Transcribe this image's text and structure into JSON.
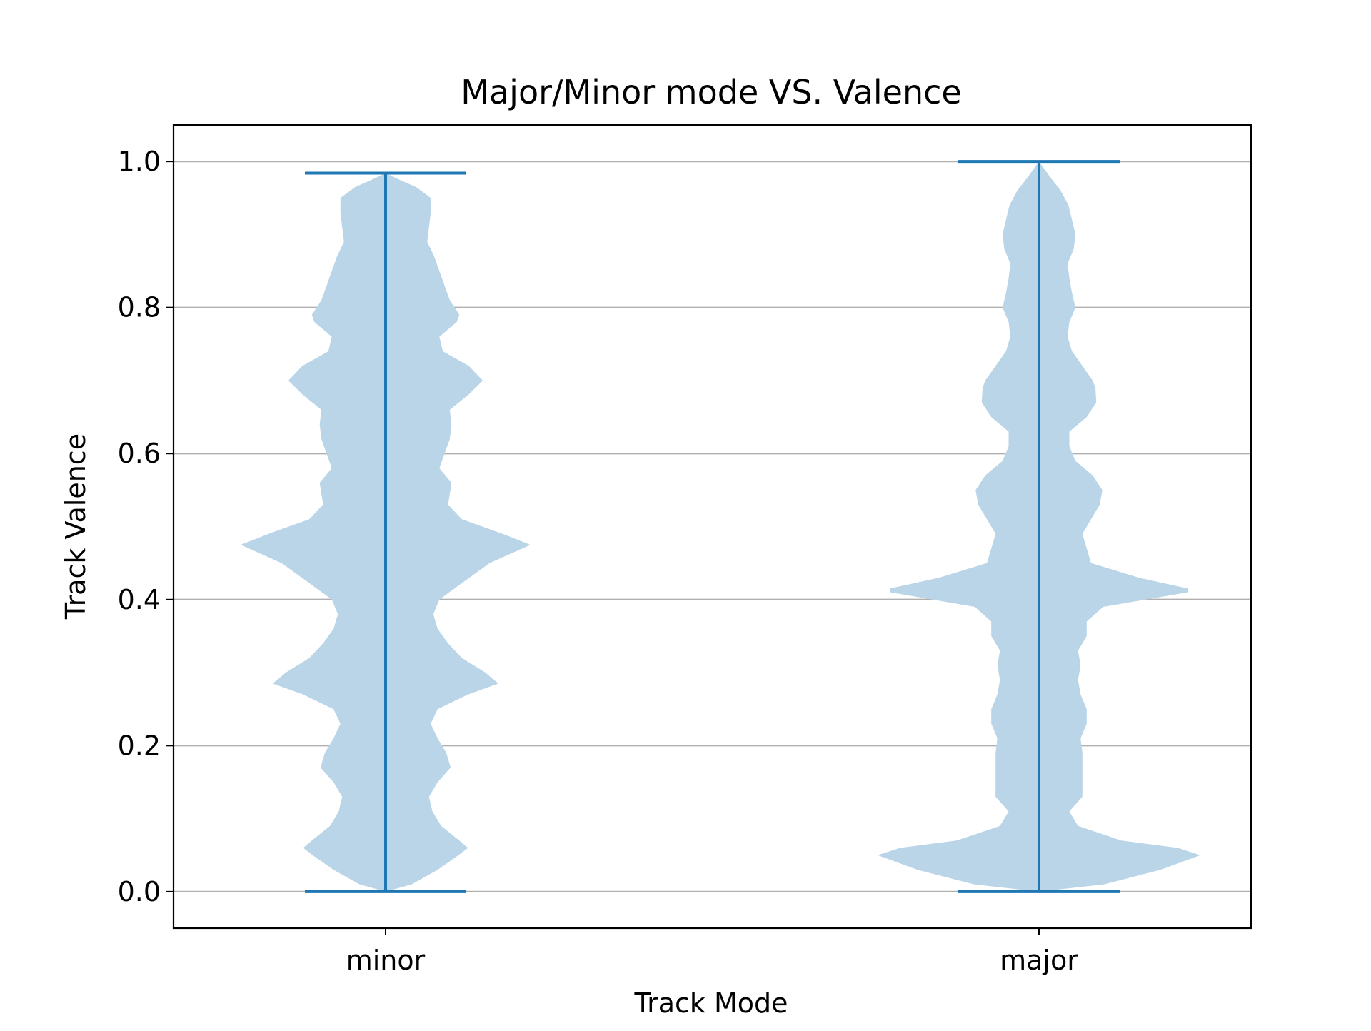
{
  "chart_data": {
    "type": "violin",
    "title": "Major/Minor mode VS. Valence",
    "xlabel": "Track Mode",
    "ylabel": "Track Valence",
    "ylim": [
      -0.05,
      1.05
    ],
    "y_ticks": [
      0.0,
      0.2,
      0.4,
      0.6,
      0.8,
      1.0
    ],
    "y_tick_labels": [
      "0.0",
      "0.2",
      "0.4",
      "0.6",
      "0.8",
      "1.0"
    ],
    "categories": [
      "minor",
      "major"
    ],
    "grid": "horizontal",
    "colors": {
      "body": "#bad5e8",
      "line": "#1f77b4",
      "grid": "#b0b0b0",
      "axis": "#000000"
    },
    "series": [
      {
        "category": "minor",
        "min": 0.0,
        "max": 0.984,
        "density_profile": [
          [
            0.0,
            0.0
          ],
          [
            0.01,
            0.3
          ],
          [
            0.03,
            0.6
          ],
          [
            0.05,
            0.84
          ],
          [
            0.06,
            0.95
          ],
          [
            0.07,
            0.85
          ],
          [
            0.09,
            0.64
          ],
          [
            0.11,
            0.54
          ],
          [
            0.13,
            0.5
          ],
          [
            0.15,
            0.6
          ],
          [
            0.17,
            0.75
          ],
          [
            0.19,
            0.7
          ],
          [
            0.21,
            0.6
          ],
          [
            0.23,
            0.52
          ],
          [
            0.25,
            0.6
          ],
          [
            0.27,
            0.95
          ],
          [
            0.285,
            1.3
          ],
          [
            0.3,
            1.15
          ],
          [
            0.32,
            0.88
          ],
          [
            0.34,
            0.72
          ],
          [
            0.36,
            0.6
          ],
          [
            0.38,
            0.55
          ],
          [
            0.4,
            0.62
          ],
          [
            0.42,
            0.85
          ],
          [
            0.45,
            1.2
          ],
          [
            0.475,
            1.67
          ],
          [
            0.49,
            1.35
          ],
          [
            0.51,
            0.88
          ],
          [
            0.53,
            0.72
          ],
          [
            0.56,
            0.76
          ],
          [
            0.58,
            0.62
          ],
          [
            0.6,
            0.68
          ],
          [
            0.62,
            0.74
          ],
          [
            0.64,
            0.76
          ],
          [
            0.66,
            0.74
          ],
          [
            0.68,
            0.95
          ],
          [
            0.7,
            1.12
          ],
          [
            0.72,
            0.96
          ],
          [
            0.74,
            0.66
          ],
          [
            0.76,
            0.62
          ],
          [
            0.78,
            0.82
          ],
          [
            0.79,
            0.85
          ],
          [
            0.81,
            0.74
          ],
          [
            0.83,
            0.68
          ],
          [
            0.85,
            0.62
          ],
          [
            0.87,
            0.56
          ],
          [
            0.89,
            0.48
          ],
          [
            0.91,
            0.5
          ],
          [
            0.93,
            0.52
          ],
          [
            0.95,
            0.52
          ],
          [
            0.965,
            0.35
          ],
          [
            0.975,
            0.16
          ],
          [
            0.984,
            0.0
          ]
        ]
      },
      {
        "category": "major",
        "min": 0.0,
        "max": 1.0,
        "density_profile": [
          [
            0.0,
            0.0
          ],
          [
            0.01,
            0.75
          ],
          [
            0.03,
            1.4
          ],
          [
            0.05,
            1.86
          ],
          [
            0.06,
            1.6
          ],
          [
            0.07,
            0.95
          ],
          [
            0.09,
            0.45
          ],
          [
            0.11,
            0.35
          ],
          [
            0.13,
            0.5
          ],
          [
            0.15,
            0.5
          ],
          [
            0.17,
            0.5
          ],
          [
            0.19,
            0.5
          ],
          [
            0.21,
            0.48
          ],
          [
            0.23,
            0.55
          ],
          [
            0.25,
            0.55
          ],
          [
            0.27,
            0.48
          ],
          [
            0.29,
            0.45
          ],
          [
            0.31,
            0.48
          ],
          [
            0.33,
            0.45
          ],
          [
            0.35,
            0.55
          ],
          [
            0.37,
            0.55
          ],
          [
            0.39,
            0.74
          ],
          [
            0.41,
            1.72
          ],
          [
            0.415,
            1.72
          ],
          [
            0.43,
            1.15
          ],
          [
            0.45,
            0.6
          ],
          [
            0.47,
            0.55
          ],
          [
            0.49,
            0.5
          ],
          [
            0.51,
            0.6
          ],
          [
            0.53,
            0.7
          ],
          [
            0.55,
            0.73
          ],
          [
            0.57,
            0.62
          ],
          [
            0.59,
            0.42
          ],
          [
            0.61,
            0.35
          ],
          [
            0.63,
            0.35
          ],
          [
            0.65,
            0.55
          ],
          [
            0.67,
            0.66
          ],
          [
            0.69,
            0.65
          ],
          [
            0.7,
            0.62
          ],
          [
            0.72,
            0.5
          ],
          [
            0.74,
            0.38
          ],
          [
            0.76,
            0.33
          ],
          [
            0.78,
            0.35
          ],
          [
            0.8,
            0.42
          ],
          [
            0.82,
            0.38
          ],
          [
            0.84,
            0.35
          ],
          [
            0.86,
            0.33
          ],
          [
            0.88,
            0.4
          ],
          [
            0.9,
            0.42
          ],
          [
            0.92,
            0.38
          ],
          [
            0.94,
            0.34
          ],
          [
            0.96,
            0.25
          ],
          [
            0.98,
            0.12
          ],
          [
            1.0,
            0.0
          ]
        ]
      }
    ]
  }
}
